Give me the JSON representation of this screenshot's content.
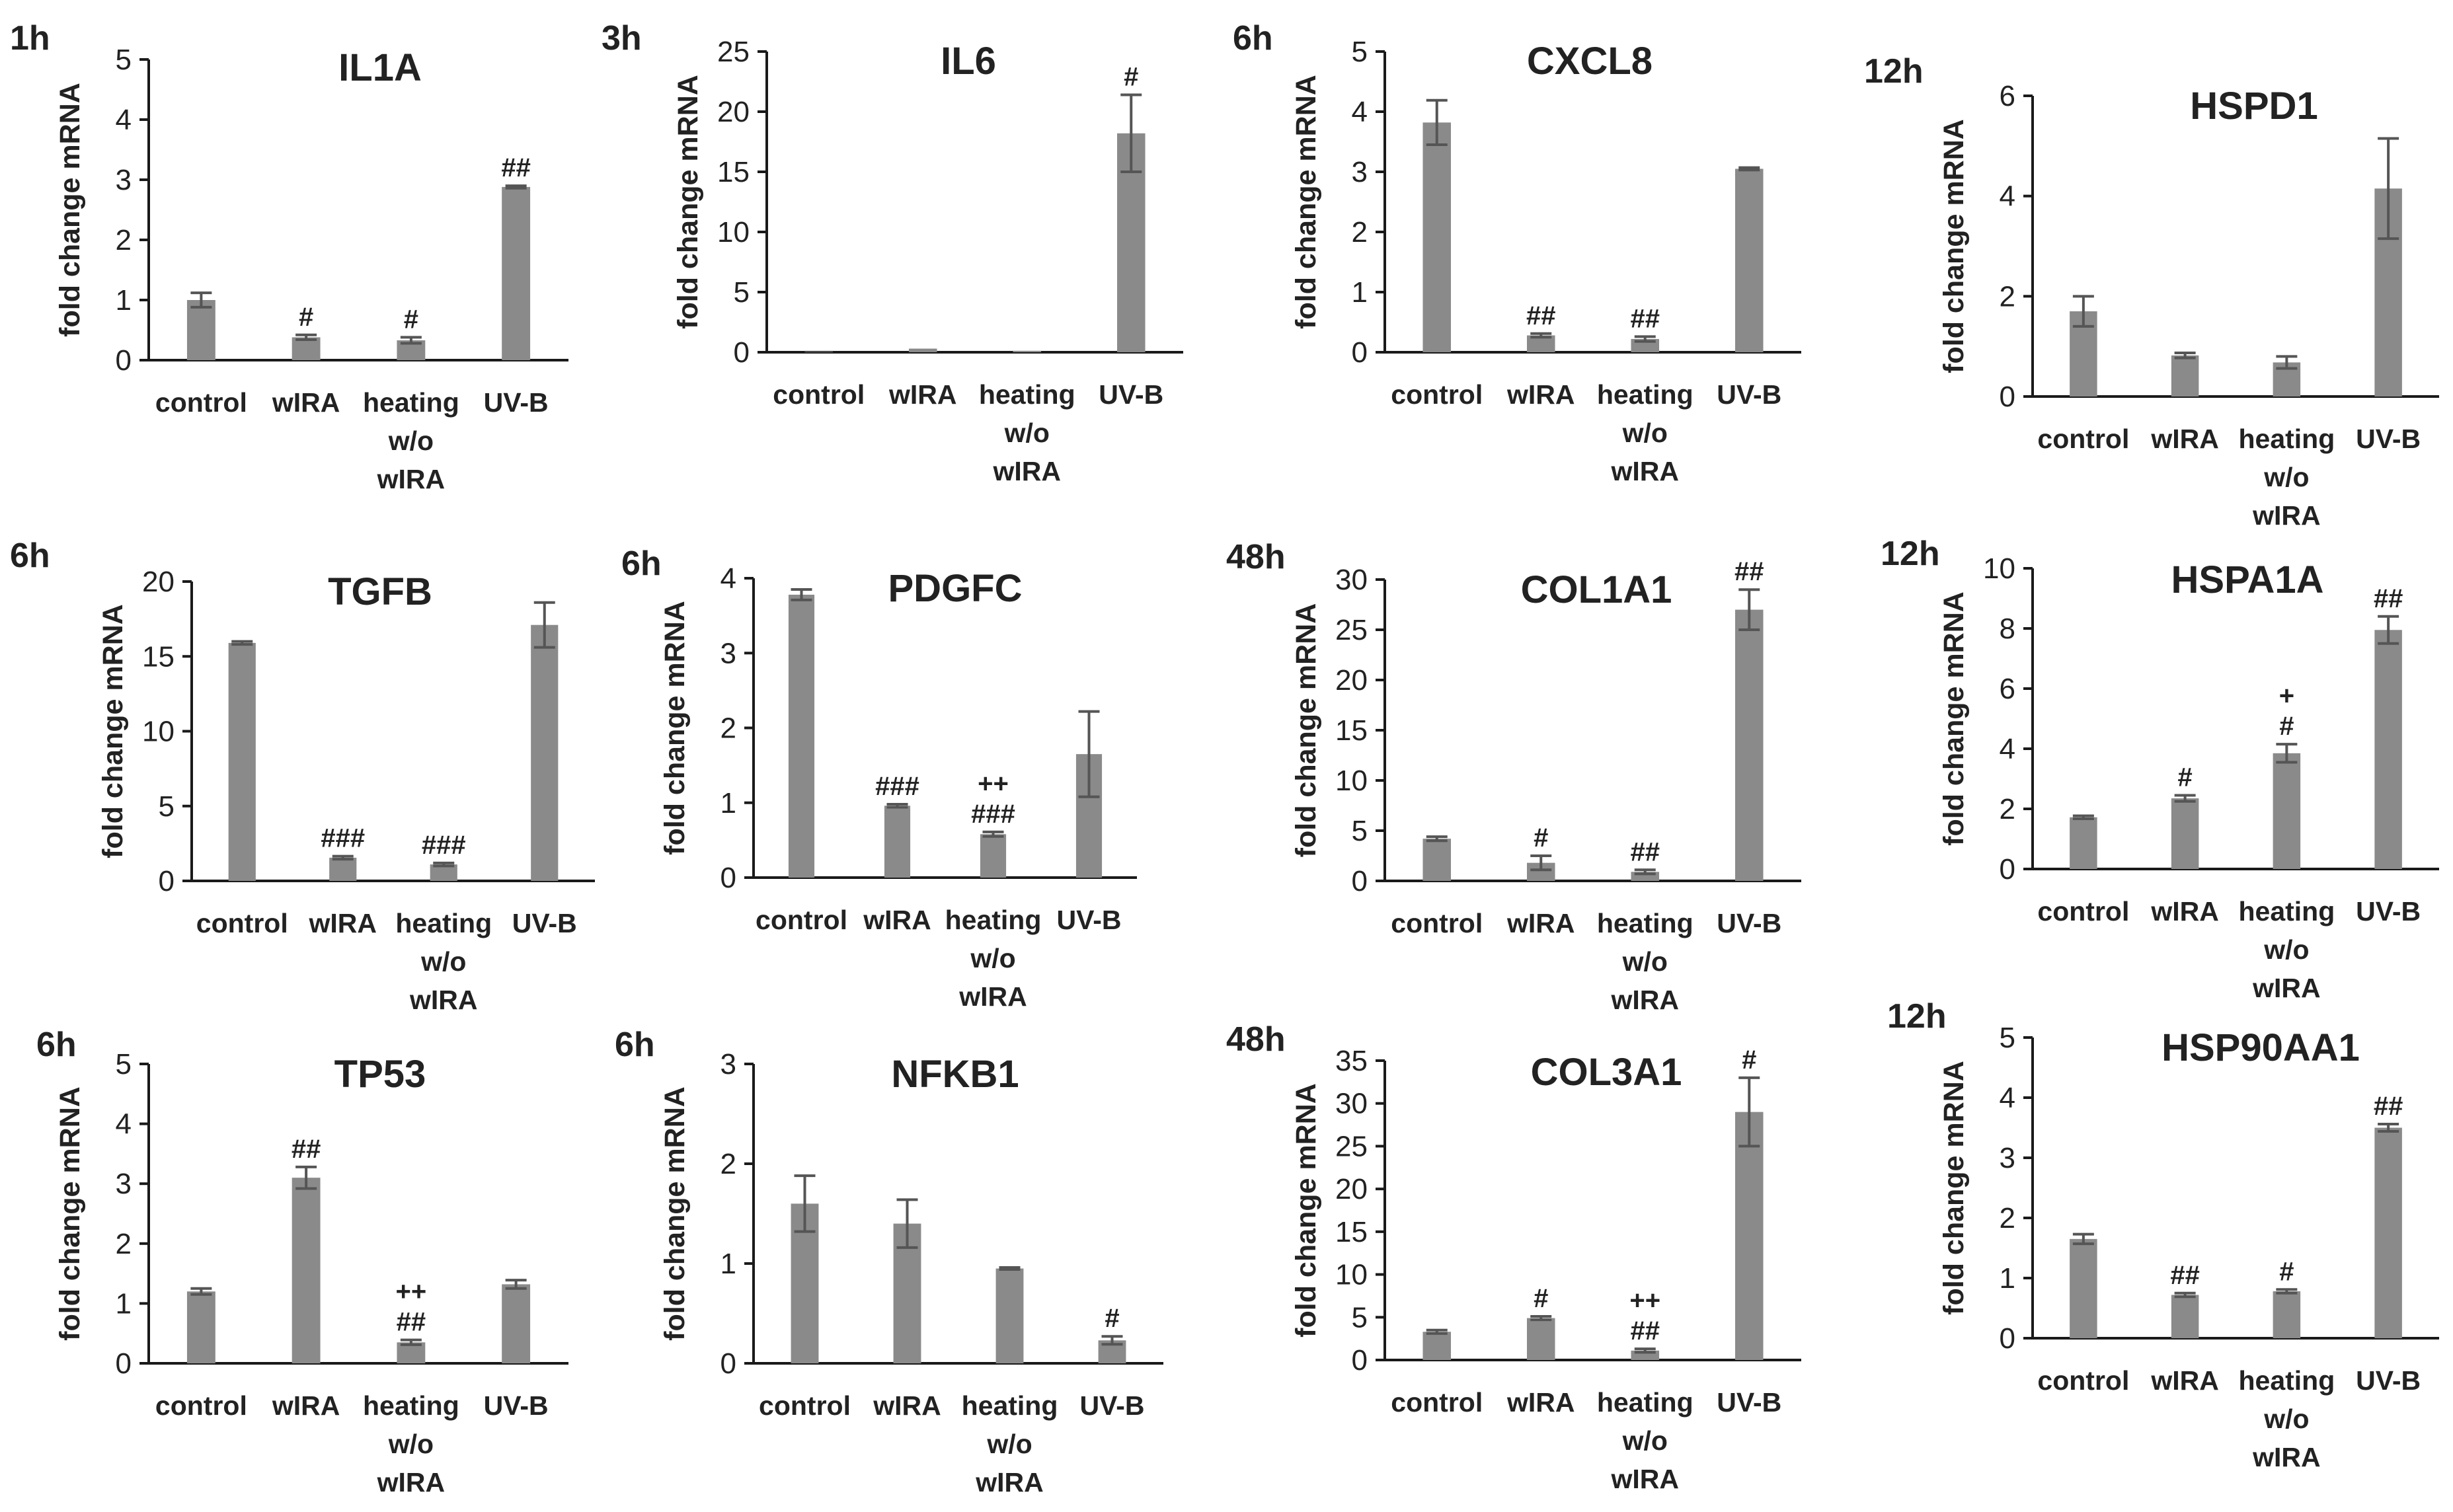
{
  "colors": {
    "bar": "#8a8a8a",
    "axis": "#1a1a1a",
    "text": "#222222",
    "error": "#555555"
  },
  "chart_data": [
    {
      "type": "bar",
      "time": "1h",
      "title": "IL1A",
      "ylabel": "fold change mRNA",
      "categories": [
        "control",
        "wIRA",
        "heating w/o wIRA",
        "UV-B"
      ],
      "values": [
        1.0,
        0.38,
        0.33,
        2.88
      ],
      "errors": [
        0.12,
        0.04,
        0.05,
        0.02
      ],
      "ylim": [
        0,
        5
      ],
      "yticks": [
        0,
        1,
        2,
        3,
        4,
        5
      ],
      "annotations": [
        "",
        "#",
        "#",
        "##"
      ]
    },
    {
      "type": "bar",
      "time": "3h",
      "title": "IL6",
      "ylabel": "fold change mRNA",
      "categories": [
        "control",
        "wIRA",
        "heating w/o wIRA",
        "UV-B"
      ],
      "values": [
        0.05,
        0.3,
        0.12,
        18.2
      ],
      "errors": [
        0,
        0,
        0,
        3.2
      ],
      "ylim": [
        0,
        25
      ],
      "yticks": [
        0,
        5,
        10,
        15,
        20,
        25
      ],
      "annotations": [
        "",
        "",
        "",
        "#"
      ]
    },
    {
      "type": "bar",
      "time": "6h",
      "title": "CXCL8",
      "ylabel": "fold change mRNA",
      "categories": [
        "control",
        "wIRA",
        "heating w/o wIRA",
        "UV-B"
      ],
      "values": [
        3.82,
        0.28,
        0.22,
        3.05
      ],
      "errors": [
        0.37,
        0.03,
        0.04,
        0.02
      ],
      "ylim": [
        0,
        5
      ],
      "yticks": [
        0,
        1,
        2,
        3,
        4,
        5
      ],
      "annotations": [
        "",
        "##",
        "##",
        ""
      ]
    },
    {
      "type": "bar",
      "time": "12h",
      "title": "HSPD1",
      "ylabel": "fold change mRNA",
      "categories": [
        "control",
        "wIRA",
        "heating w/o wIRA",
        "UV-B"
      ],
      "values": [
        1.7,
        0.82,
        0.68,
        4.15
      ],
      "errors": [
        0.3,
        0.05,
        0.12,
        1.0
      ],
      "ylim": [
        0,
        6
      ],
      "yticks": [
        0,
        2,
        4,
        6
      ],
      "annotations": [
        "",
        "",
        "",
        ""
      ]
    },
    {
      "type": "bar",
      "time": "6h",
      "title": "TGFB",
      "ylabel": "fold change mRNA",
      "categories": [
        "control",
        "wIRA",
        "heating w/o wIRA",
        "UV-B"
      ],
      "values": [
        15.9,
        1.55,
        1.1,
        17.1
      ],
      "errors": [
        0.1,
        0.1,
        0.1,
        1.5
      ],
      "ylim": [
        0,
        20
      ],
      "yticks": [
        0,
        5,
        10,
        15,
        20
      ],
      "annotations": [
        "",
        "###",
        "###",
        ""
      ]
    },
    {
      "type": "bar",
      "time": "6h",
      "title": "PDGFC",
      "ylabel": "fold change mRNA",
      "categories": [
        "control",
        "wIRA",
        "heating w/o wIRA",
        "UV-B"
      ],
      "values": [
        3.78,
        0.96,
        0.58,
        1.65
      ],
      "errors": [
        0.07,
        0.02,
        0.03,
        0.57
      ],
      "ylim": [
        0,
        4
      ],
      "yticks": [
        0,
        1,
        2,
        3,
        4
      ],
      "annotations": [
        "",
        "###",
        "++\n###",
        ""
      ]
    },
    {
      "type": "bar",
      "time": "48h",
      "title": "COL1A1",
      "ylabel": "fold change mRNA",
      "categories": [
        "control",
        "wIRA",
        "heating w/o wIRA",
        "UV-B"
      ],
      "values": [
        4.2,
        1.8,
        0.9,
        27.0
      ],
      "errors": [
        0.2,
        0.7,
        0.2,
        2.0
      ],
      "ylim": [
        0,
        30
      ],
      "yticks": [
        0,
        5,
        10,
        15,
        20,
        25,
        30
      ],
      "annotations": [
        "",
        "#",
        "##",
        "##"
      ]
    },
    {
      "type": "bar",
      "time": "12h",
      "title": "HSPA1A",
      "ylabel": "fold change mRNA",
      "categories": [
        "control",
        "wIRA",
        "heating w/o wIRA",
        "UV-B"
      ],
      "values": [
        1.72,
        2.35,
        3.85,
        7.95
      ],
      "errors": [
        0.05,
        0.1,
        0.3,
        0.45
      ],
      "ylim": [
        0,
        10
      ],
      "yticks": [
        0,
        2,
        4,
        6,
        8,
        10
      ],
      "annotations": [
        "",
        "#",
        "+\n#",
        "##"
      ]
    },
    {
      "type": "bar",
      "time": "6h",
      "title": "TP53",
      "ylabel": "fold change mRNA",
      "categories": [
        "control",
        "wIRA",
        "heating w/o wIRA",
        "UV-B"
      ],
      "values": [
        1.2,
        3.1,
        0.35,
        1.32
      ],
      "errors": [
        0.05,
        0.18,
        0.04,
        0.07
      ],
      "ylim": [
        0,
        5
      ],
      "yticks": [
        0,
        1,
        2,
        3,
        4,
        5
      ],
      "annotations": [
        "",
        "##",
        "++\n##",
        ""
      ]
    },
    {
      "type": "bar",
      "time": "6h",
      "title": "NFKB1",
      "ylabel": "fold change mRNA",
      "categories": [
        "control",
        "wIRA",
        "heating w/o wIRA",
        "UV-B"
      ],
      "values": [
        1.6,
        1.4,
        0.95,
        0.23
      ],
      "errors": [
        0.28,
        0.24,
        0.01,
        0.04
      ],
      "ylim": [
        0,
        3
      ],
      "yticks": [
        0,
        1,
        2,
        3
      ],
      "annotations": [
        "",
        "",
        "",
        "#"
      ]
    },
    {
      "type": "bar",
      "time": "48h",
      "title": "COL3A1",
      "ylabel": "fold change mRNA",
      "categories": [
        "control",
        "wIRA",
        "heating w/o wIRA",
        "UV-B"
      ],
      "values": [
        3.3,
        4.9,
        1.1,
        29.0
      ],
      "errors": [
        0.2,
        0.2,
        0.2,
        4.0
      ],
      "ylim": [
        0,
        35
      ],
      "yticks": [
        0,
        5,
        10,
        15,
        20,
        25,
        30,
        35
      ],
      "annotations": [
        "",
        "#",
        "++\n##",
        "#"
      ]
    },
    {
      "type": "bar",
      "time": "12h",
      "title": "HSP90AA1",
      "ylabel": "fold change mRNA",
      "categories": [
        "control",
        "wIRA",
        "heating w/o wIRA",
        "UV-B"
      ],
      "values": [
        1.65,
        0.72,
        0.78,
        3.5
      ],
      "errors": [
        0.08,
        0.03,
        0.03,
        0.06
      ],
      "ylim": [
        0,
        5
      ],
      "yticks": [
        0,
        1,
        2,
        3,
        4,
        5
      ],
      "annotations": [
        "",
        "##",
        "#",
        "##"
      ]
    }
  ]
}
